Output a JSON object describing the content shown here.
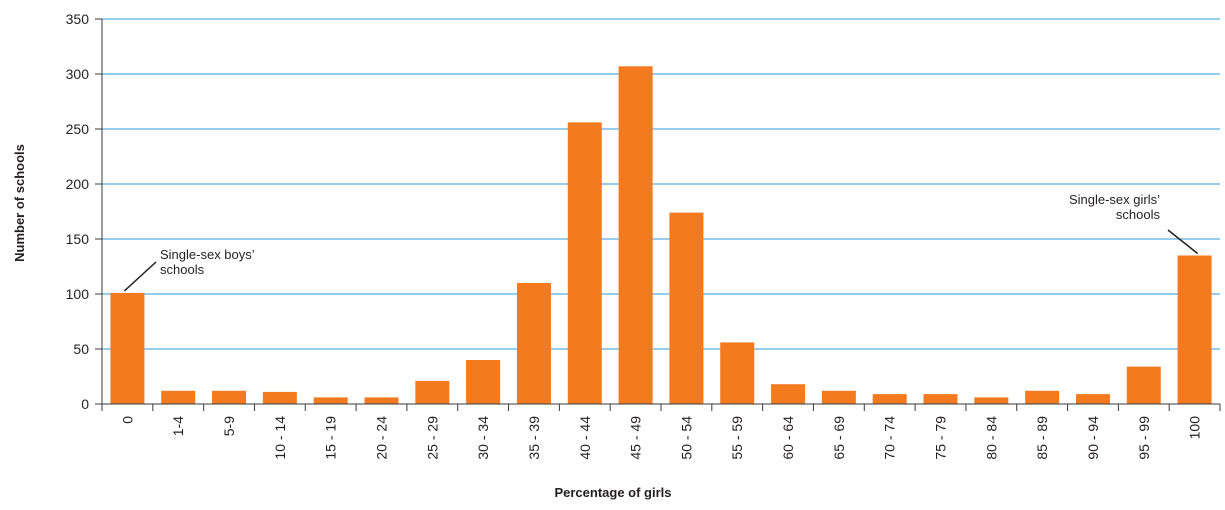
{
  "chart_data": {
    "type": "bar",
    "title": "",
    "xlabel": "Percentage of girls",
    "ylabel": "Number of schools",
    "categories": [
      "0",
      "1-4",
      "5-9",
      "10 - 14",
      "15 - 19",
      "20 - 24",
      "25 - 29",
      "30 - 34",
      "35 - 39",
      "40 - 44",
      "45 - 49",
      "50 - 54",
      "55 - 59",
      "60 - 64",
      "65 - 69",
      "70 - 74",
      "75 - 79",
      "80 - 84",
      "85 - 89",
      "90 - 94",
      "95 - 99",
      "100"
    ],
    "values": [
      101,
      12,
      12,
      11,
      6,
      6,
      21,
      40,
      110,
      256,
      307,
      174,
      56,
      18,
      12,
      9,
      9,
      6,
      12,
      9,
      34,
      135
    ],
    "ylim": [
      0,
      350
    ],
    "yticks": [
      0,
      50,
      100,
      150,
      200,
      250,
      300,
      350
    ],
    "grid": true,
    "legend": "none",
    "annotations": [
      {
        "lines": [
          "Single-sex boys’",
          "schools"
        ],
        "category": "0"
      },
      {
        "lines": [
          "Single-sex girls’",
          "schools"
        ],
        "category": "100"
      }
    ],
    "colors": {
      "bar": "#f47a20",
      "grid": "#2b9bd6",
      "axis": "#3a3a3a",
      "text": "#231f20"
    }
  }
}
